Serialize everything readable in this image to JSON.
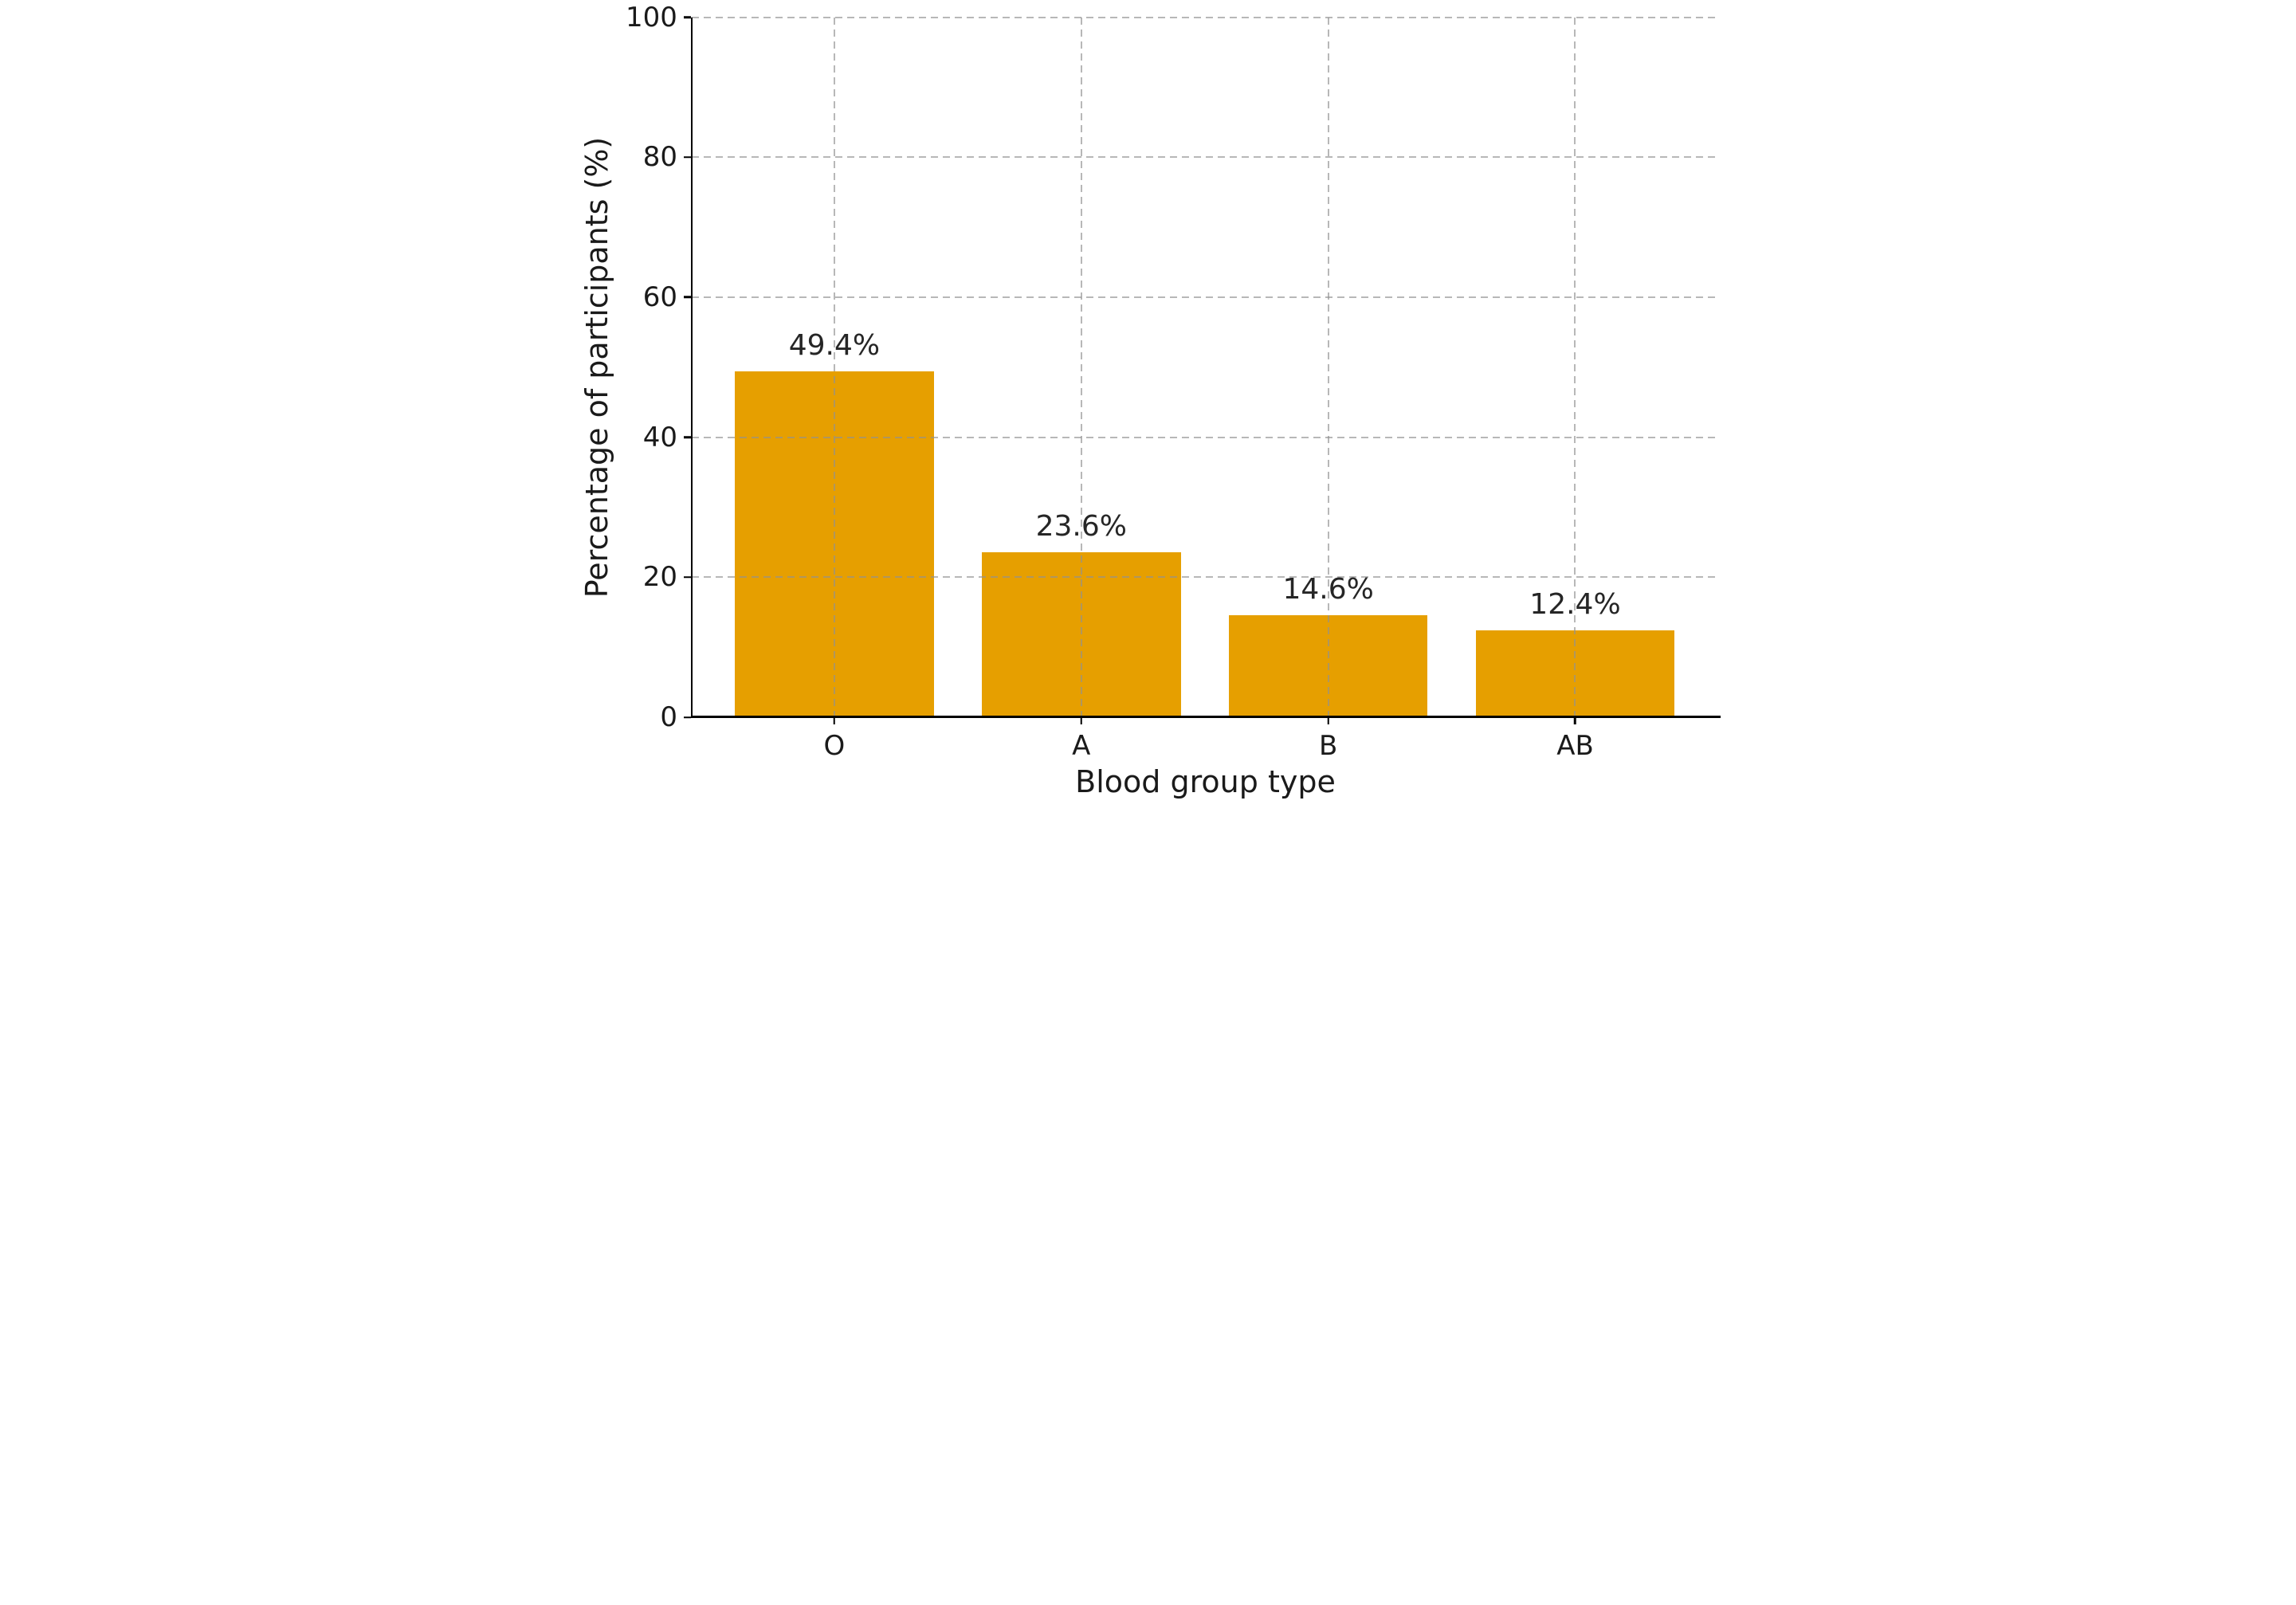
{
  "figure": {
    "background": "#ffffff",
    "text_color": "#1a1a1a",
    "grid_color": "#919191",
    "spine_color": "#000000"
  },
  "chart_data": {
    "type": "bar",
    "categories": [
      "O",
      "A",
      "B",
      "AB"
    ],
    "values": [
      49.4,
      23.6,
      14.6,
      12.4
    ],
    "bar_value_labels": [
      "49.4%",
      "23.6%",
      "14.6%",
      "12.4%"
    ],
    "title": "",
    "xlabel": "Blood group type",
    "ylabel": "Percentage of participants (%)",
    "ylim": [
      0,
      100
    ],
    "yticks": [
      0,
      20,
      40,
      60,
      80,
      100
    ],
    "bar_color": "#E69F00",
    "grid": "both-dashed-over-bars",
    "legend_position": "none"
  }
}
